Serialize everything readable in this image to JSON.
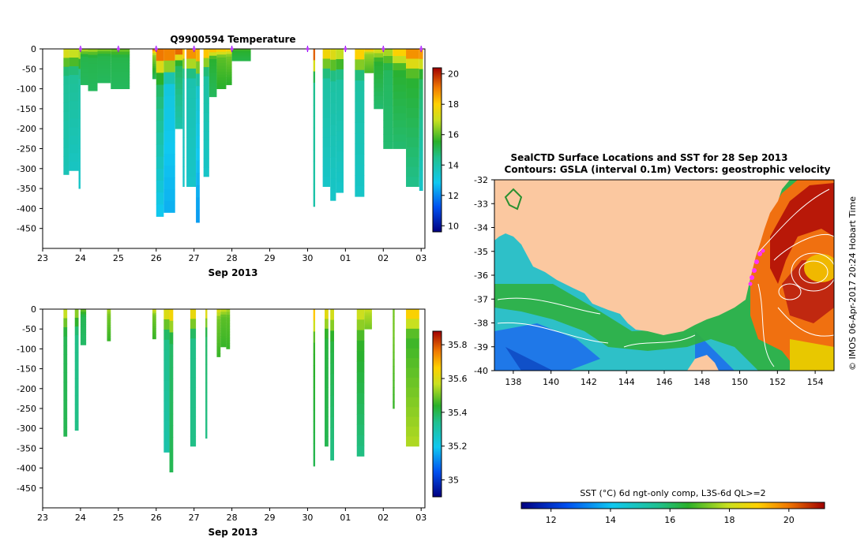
{
  "chart_data": [
    {
      "type": "heatmap",
      "title": "Q9900594  Temperature",
      "xlabel": "Sep 2013",
      "ylabel": "",
      "x_tick_labels": [
        "23",
        "24",
        "25",
        "26",
        "27",
        "28",
        "29",
        "30",
        "01",
        "02",
        "03"
      ],
      "y_ticks": [
        0,
        -50,
        -100,
        -150,
        -200,
        -250,
        -300,
        -350,
        -400,
        -450
      ],
      "xlim": [
        23,
        33.1
      ],
      "ylim": [
        -500,
        0
      ],
      "colorbar": {
        "ticks": [
          10,
          12,
          14,
          16,
          18,
          20
        ],
        "range": [
          9.6,
          20.4
        ]
      },
      "profile_markers_day": [
        24,
        25,
        26,
        27,
        28,
        30,
        31,
        32,
        33
      ],
      "profiles": [
        {
          "t0": 23.55,
          "t1": 23.7,
          "depth": -315,
          "surf": 17.8,
          "mid": 14.4,
          "deep": 13.8
        },
        {
          "t0": 23.7,
          "t1": 23.95,
          "depth": -305,
          "surf": 17.5,
          "mid": 14.4,
          "deep": 13.6
        },
        {
          "t0": 23.95,
          "t1": 24.0,
          "depth": -350,
          "surf": 17.2,
          "mid": 14.2,
          "deep": 13.5
        },
        {
          "t0": 24.0,
          "t1": 24.2,
          "depth": -90,
          "surf": 17.0,
          "mid": 15.2,
          "deep": 15.0
        },
        {
          "t0": 24.2,
          "t1": 24.45,
          "depth": -105,
          "surf": 16.8,
          "mid": 15.2,
          "deep": 15.0
        },
        {
          "t0": 24.45,
          "t1": 24.8,
          "depth": -85,
          "surf": 16.5,
          "mid": 15.2,
          "deep": 15.0
        },
        {
          "t0": 24.8,
          "t1": 25.3,
          "depth": -100,
          "surf": 16.3,
          "mid": 15.2,
          "deep": 15.0
        },
        {
          "t0": 25.9,
          "t1": 26.0,
          "depth": -75,
          "surf": 19.5,
          "mid": 16.5,
          "deep": 15.0
        },
        {
          "t0": 26.0,
          "t1": 26.2,
          "depth": -420,
          "surf": 20.0,
          "mid": 15.0,
          "deep": 12.8
        },
        {
          "t0": 26.2,
          "t1": 26.5,
          "depth": -410,
          "surf": 20.2,
          "mid": 13.2,
          "deep": 12.5
        },
        {
          "t0": 26.5,
          "t1": 26.7,
          "depth": -200,
          "surf": 20.2,
          "mid": 15.0,
          "deep": 14.0
        },
        {
          "t0": 26.7,
          "t1": 26.75,
          "depth": -345,
          "surf": 19.0,
          "mid": 14.0,
          "deep": 13.5
        },
        {
          "t0": 26.8,
          "t1": 27.05,
          "depth": -345,
          "surf": 19.8,
          "mid": 14.0,
          "deep": 13.5
        },
        {
          "t0": 27.05,
          "t1": 27.15,
          "depth": -435,
          "surf": 19.5,
          "mid": 13.5,
          "deep": 12.2
        },
        {
          "t0": 27.25,
          "t1": 27.4,
          "depth": -320,
          "surf": 19.0,
          "mid": 14.2,
          "deep": 13.5
        },
        {
          "t0": 27.4,
          "t1": 27.6,
          "depth": -120,
          "surf": 18.8,
          "mid": 15.5,
          "deep": 15.0
        },
        {
          "t0": 27.6,
          "t1": 27.85,
          "depth": -100,
          "surf": 18.5,
          "mid": 16.0,
          "deep": 15.5
        },
        {
          "t0": 27.85,
          "t1": 28.0,
          "depth": -90,
          "surf": 18.2,
          "mid": 16.2,
          "deep": 15.5
        },
        {
          "t0": 28.0,
          "t1": 28.5,
          "depth": -30,
          "surf": 16.0,
          "mid": 15.5,
          "deep": 15.2
        },
        {
          "t0": 30.15,
          "t1": 30.2,
          "depth": -395,
          "surf": 20.4,
          "mid": 14.5,
          "deep": 14.0
        },
        {
          "t0": 30.4,
          "t1": 30.6,
          "depth": -345,
          "surf": 18.5,
          "mid": 14.2,
          "deep": 13.5
        },
        {
          "t0": 30.6,
          "t1": 30.75,
          "depth": -380,
          "surf": 18.0,
          "mid": 14.2,
          "deep": 13.5
        },
        {
          "t0": 30.75,
          "t1": 30.95,
          "depth": -360,
          "surf": 17.5,
          "mid": 14.2,
          "deep": 13.5
        },
        {
          "t0": 31.25,
          "t1": 31.5,
          "depth": -370,
          "surf": 18.8,
          "mid": 14.2,
          "deep": 13.5
        },
        {
          "t0": 31.5,
          "t1": 31.75,
          "depth": -60,
          "surf": 18.5,
          "mid": 16.5,
          "deep": 15.8
        },
        {
          "t0": 31.75,
          "t1": 32.0,
          "depth": -150,
          "surf": 17.5,
          "mid": 15.5,
          "deep": 14.8
        },
        {
          "t0": 32.0,
          "t1": 32.25,
          "depth": -250,
          "surf": 17.0,
          "mid": 15.0,
          "deep": 14.8
        },
        {
          "t0": 32.25,
          "t1": 32.6,
          "depth": -250,
          "surf": 18.5,
          "mid": 15.5,
          "deep": 14.8
        },
        {
          "t0": 32.6,
          "t1": 32.95,
          "depth": -345,
          "surf": 19.5,
          "mid": 15.5,
          "deep": 14.5
        },
        {
          "t0": 32.95,
          "t1": 33.05,
          "depth": -355,
          "surf": 19.5,
          "mid": 15.0,
          "deep": 13.5
        }
      ]
    },
    {
      "type": "heatmap",
      "title": "",
      "xlabel": "Sep 2013",
      "x_tick_labels": [
        "23",
        "24",
        "25",
        "26",
        "27",
        "28",
        "29",
        "30",
        "01",
        "02",
        "03"
      ],
      "y_ticks": [
        0,
        -50,
        -100,
        -150,
        -200,
        -250,
        -300,
        -350,
        -400,
        -450
      ],
      "xlim": [
        23,
        33.1
      ],
      "ylim": [
        -500,
        0
      ],
      "colorbar": {
        "ticks": [
          35,
          35.2,
          35.4,
          35.6,
          35.8
        ],
        "range": [
          34.9,
          35.88
        ]
      },
      "profiles": [
        {
          "t0": 23.55,
          "t1": 23.65,
          "depth": -320,
          "surf": 35.6,
          "mid": 35.4,
          "deep": 35.4
        },
        {
          "t0": 23.85,
          "t1": 23.95,
          "depth": -305,
          "surf": 35.55,
          "mid": 35.35,
          "deep": 35.35
        },
        {
          "t0": 24.0,
          "t1": 24.15,
          "depth": -90,
          "surf": 35.5,
          "mid": 35.4,
          "deep": 35.38
        },
        {
          "t0": 24.7,
          "t1": 24.8,
          "depth": -80,
          "surf": 35.55,
          "mid": 35.5,
          "deep": 35.45
        },
        {
          "t0": 25.9,
          "t1": 26.0,
          "depth": -75,
          "surf": 35.6,
          "mid": 35.5,
          "deep": 35.45
        },
        {
          "t0": 26.2,
          "t1": 26.35,
          "depth": -360,
          "surf": 35.65,
          "mid": 35.35,
          "deep": 35.3
        },
        {
          "t0": 26.35,
          "t1": 26.45,
          "depth": -410,
          "surf": 35.7,
          "mid": 35.38,
          "deep": 35.4
        },
        {
          "t0": 26.9,
          "t1": 27.05,
          "depth": -345,
          "surf": 35.68,
          "mid": 35.35,
          "deep": 35.35
        },
        {
          "t0": 27.3,
          "t1": 27.35,
          "depth": -325,
          "surf": 35.65,
          "mid": 35.38,
          "deep": 35.35
        },
        {
          "t0": 27.6,
          "t1": 27.7,
          "depth": -120,
          "surf": 35.62,
          "mid": 35.5,
          "deep": 35.45
        },
        {
          "t0": 27.7,
          "t1": 27.85,
          "depth": -95,
          "surf": 35.58,
          "mid": 35.48,
          "deep": 35.45
        },
        {
          "t0": 27.85,
          "t1": 27.95,
          "depth": -100,
          "surf": 35.55,
          "mid": 35.48,
          "deep": 35.45
        },
        {
          "t0": 30.15,
          "t1": 30.2,
          "depth": -395,
          "surf": 35.72,
          "mid": 35.45,
          "deep": 35.4
        },
        {
          "t0": 30.45,
          "t1": 30.55,
          "depth": -345,
          "surf": 35.65,
          "mid": 35.42,
          "deep": 35.4
        },
        {
          "t0": 30.6,
          "t1": 30.7,
          "depth": -380,
          "surf": 35.62,
          "mid": 35.42,
          "deep": 35.35
        },
        {
          "t0": 31.3,
          "t1": 31.5,
          "depth": -370,
          "surf": 35.6,
          "mid": 35.45,
          "deep": 35.35
        },
        {
          "t0": 31.5,
          "t1": 31.7,
          "depth": -50,
          "surf": 35.58,
          "mid": 35.55,
          "deep": 35.5
        },
        {
          "t0": 32.25,
          "t1": 32.3,
          "depth": -250,
          "surf": 35.5,
          "mid": 35.5,
          "deep": 35.45
        },
        {
          "t0": 32.6,
          "t1": 32.95,
          "depth": -345,
          "surf": 35.7,
          "mid": 35.45,
          "deep": 35.55
        }
      ]
    },
    {
      "type": "heatmap",
      "title": "SealCTD Surface Locations and SST for 28 Sep 2013",
      "subtitle": "Contours: GSLA (interval 0.1m) Vectors: geostrophic velocity",
      "xlabel": "",
      "ylabel": "",
      "x_ticks": [
        138,
        140,
        142,
        144,
        146,
        148,
        150,
        152,
        154
      ],
      "y_ticks": [
        -32,
        -33,
        -34,
        -35,
        -36,
        -37,
        -38,
        -39,
        -40
      ],
      "xlim": [
        137,
        155
      ],
      "ylim": [
        -40,
        -32
      ],
      "colorbar": {
        "label": "SST (°C) 6d ngt-only comp, L3S-6d QL>=2",
        "ticks": [
          12,
          14,
          16,
          18,
          20
        ],
        "range": [
          11,
          21.2
        ]
      },
      "credit": "© IMOS 06-Apr-2017 20:24 Hobart Time"
    }
  ]
}
